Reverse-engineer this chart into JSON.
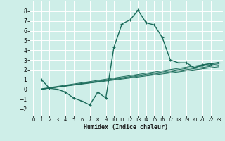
{
  "xlabel": "Humidex (Indice chaleur)",
  "background_color": "#ceeee8",
  "grid_color": "#ffffff",
  "line_color": "#1a6b5a",
  "xlim": [
    -0.5,
    23.5
  ],
  "ylim": [
    -2.7,
    9.0
  ],
  "xticks": [
    0,
    1,
    2,
    3,
    4,
    5,
    6,
    7,
    8,
    9,
    10,
    11,
    12,
    13,
    14,
    15,
    16,
    17,
    18,
    19,
    20,
    21,
    22,
    23
  ],
  "yticks": [
    -2,
    -1,
    0,
    1,
    2,
    3,
    4,
    5,
    6,
    7,
    8
  ],
  "main_x": [
    1,
    2,
    3,
    4,
    5,
    6,
    7,
    8,
    9,
    10,
    11,
    12,
    13,
    14,
    15,
    16,
    17,
    18,
    19,
    20,
    21,
    22,
    23
  ],
  "main_y": [
    1.0,
    0.1,
    0.0,
    -0.3,
    -0.9,
    -1.2,
    -1.6,
    -0.3,
    -0.9,
    4.3,
    6.7,
    7.1,
    8.1,
    6.8,
    6.6,
    5.3,
    3.0,
    2.7,
    2.7,
    2.2,
    2.5,
    2.6,
    2.7
  ],
  "linear_lines": [
    {
      "x": [
        1,
        23
      ],
      "y": [
        0.0,
        2.3
      ]
    },
    {
      "x": [
        1,
        23
      ],
      "y": [
        0.0,
        2.45
      ]
    },
    {
      "x": [
        1,
        23
      ],
      "y": [
        0.0,
        2.6
      ]
    },
    {
      "x": [
        1,
        23
      ],
      "y": [
        0.05,
        2.75
      ]
    }
  ]
}
